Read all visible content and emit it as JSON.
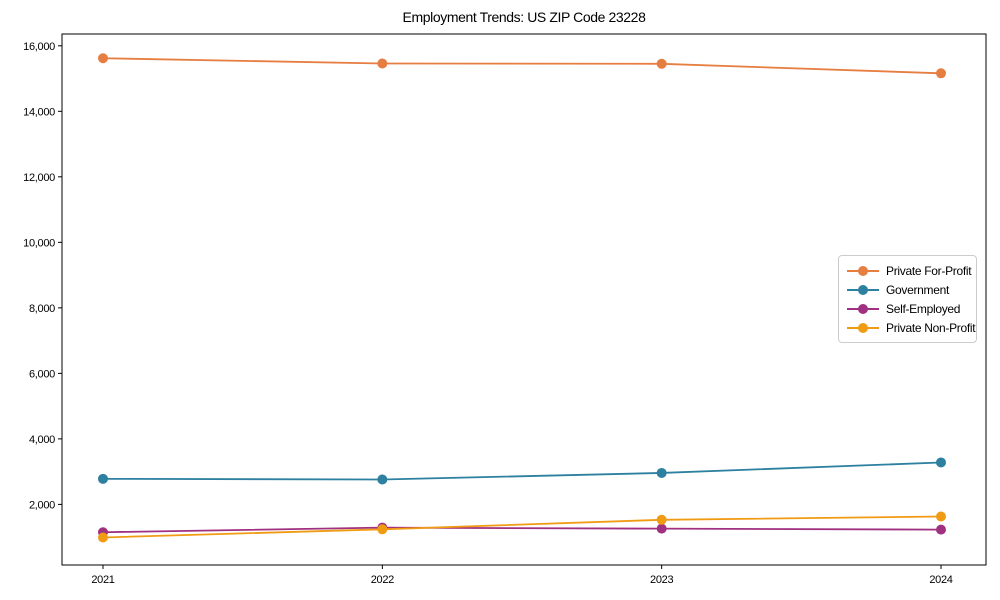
{
  "chart_data": {
    "type": "line",
    "title": "Employment Trends: US ZIP Code 23228",
    "xlabel": "",
    "ylabel": "",
    "x": [
      2021,
      2022,
      2023,
      2024
    ],
    "x_tick_labels": [
      "2021",
      "2022",
      "2023",
      "2024"
    ],
    "y_ticks": [
      2000,
      4000,
      6000,
      8000,
      10000,
      12000,
      14000,
      16000
    ],
    "y_tick_labels": [
      "2,000",
      "4,000",
      "6,000",
      "8,000",
      "10,000",
      "12,000",
      "14,000",
      "16,000"
    ],
    "ylim": [
      150,
      16360
    ],
    "grid": false,
    "legend_position": "center-right",
    "axis_color": "#000000",
    "background_color": "#ffffff",
    "series": [
      {
        "name": "Private For-Profit",
        "color": "#e67d41",
        "values": [
          15620,
          15460,
          15450,
          15160
        ]
      },
      {
        "name": "Government",
        "color": "#2d80a0",
        "values": [
          2780,
          2760,
          2960,
          3280
        ]
      },
      {
        "name": "Self-Employed",
        "color": "#a03080",
        "values": [
          1150,
          1290,
          1260,
          1230
        ]
      },
      {
        "name": "Private Non-Profit",
        "color": "#f09b14",
        "values": [
          990,
          1240,
          1530,
          1630
        ]
      }
    ]
  }
}
